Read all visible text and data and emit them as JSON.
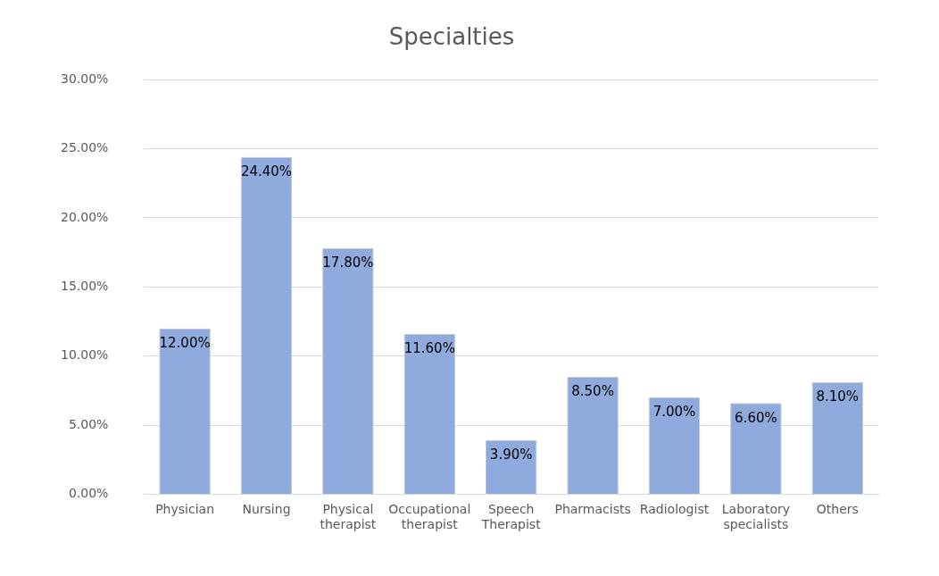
{
  "chart_data": {
    "type": "bar",
    "title": "Specialties",
    "categories": [
      "Physician",
      "Nursing",
      "Physical therapist",
      "Occupational therapist",
      "Speech Therapist",
      "Pharmacists",
      "Radiologist",
      "Laboratory specialists",
      "Others"
    ],
    "values": [
      12.0,
      24.4,
      17.8,
      11.6,
      3.9,
      8.5,
      7.0,
      6.6,
      8.1
    ],
    "value_labels": [
      "12.00%",
      "24.40%",
      "17.80%",
      "11.60%",
      "3.90%",
      "8.50%",
      "7.00%",
      "6.60%",
      "8.10%"
    ],
    "color": "#8faadc",
    "ylim": [
      0,
      30
    ],
    "yticks": [
      {
        "value": 0,
        "label": "0.00%"
      },
      {
        "value": 5,
        "label": "5.00%"
      },
      {
        "value": 10,
        "label": "10.00%"
      },
      {
        "value": 15,
        "label": "15.00%"
      },
      {
        "value": 20,
        "label": "20.00%"
      },
      {
        "value": 25,
        "label": "25.00%"
      },
      {
        "value": 30,
        "label": "30.00%"
      }
    ],
    "grid": "y",
    "legend": false
  }
}
